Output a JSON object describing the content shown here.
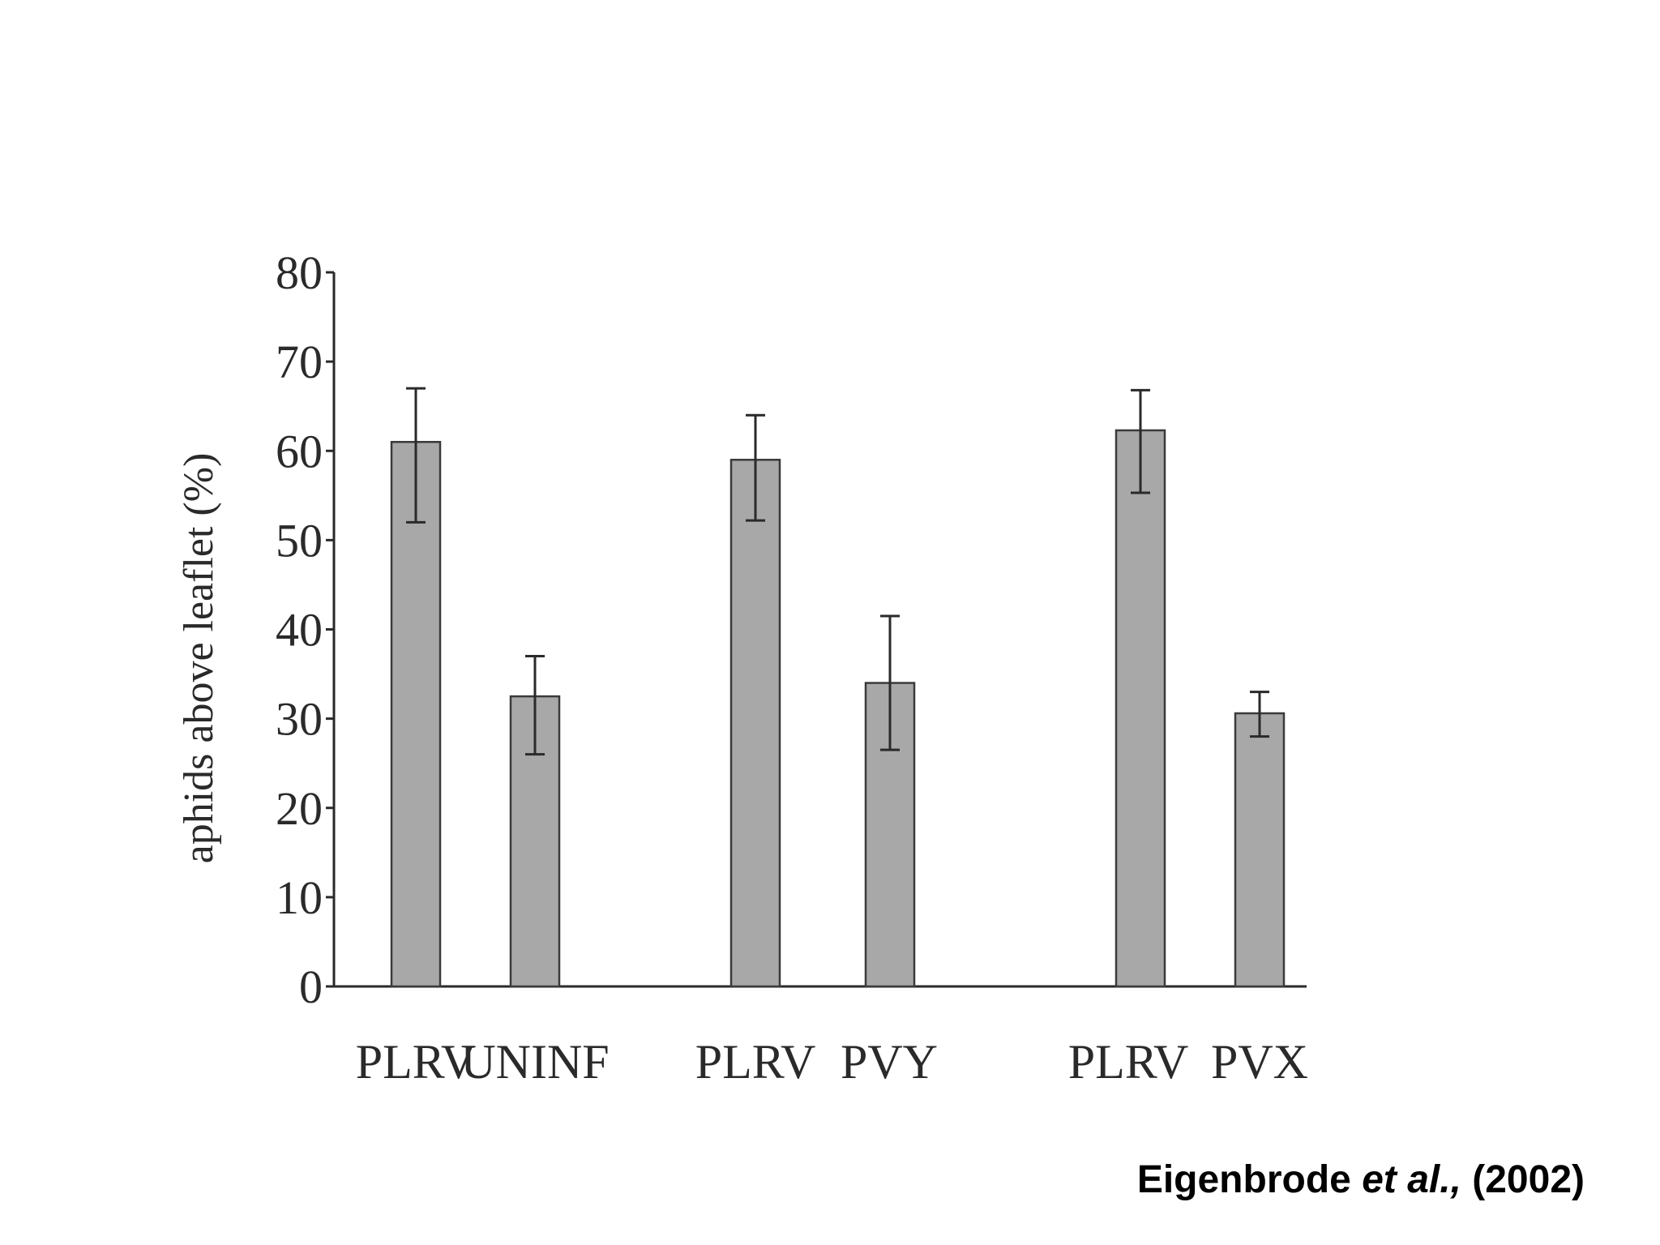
{
  "colors": {
    "bar_fill": "#a8a8a8",
    "bar_stroke": "#3a3a3a",
    "axis": "#2a2a2a",
    "error_bar": "#2a2a2a"
  },
  "chart_data": {
    "type": "bar",
    "title": "",
    "xlabel": "",
    "ylabel": "aphids above leaflet (%)",
    "ylim": [
      0,
      80
    ],
    "yticks": [
      "0",
      "10",
      "20",
      "30",
      "40",
      "50",
      "60",
      "70",
      "80"
    ],
    "grid": false,
    "legend": "none",
    "categories": [
      "PLRV",
      "UNINF",
      "PLRV",
      "PVY",
      "PLRV",
      "PVX"
    ],
    "groups": [
      [
        "PLRV",
        "UNINF"
      ],
      [
        "PLRV",
        "PVY"
      ],
      [
        "PLRV",
        "PVX"
      ]
    ],
    "values": [
      61,
      32.5,
      59,
      34,
      62.3,
      30.6
    ],
    "error_high": [
      67,
      37,
      64,
      41.5,
      66.8,
      33
    ],
    "error_low": [
      52,
      26,
      52.2,
      26.5,
      55.3,
      28
    ]
  },
  "citation": {
    "author": "Eigenbrode",
    "etal": "et al.,",
    "year": "(2002)"
  }
}
